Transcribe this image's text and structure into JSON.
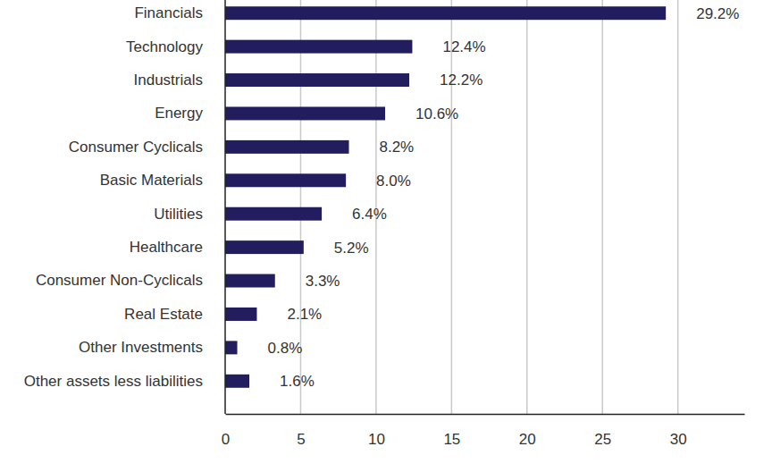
{
  "chart_data": {
    "type": "bar",
    "orientation": "horizontal",
    "categories": [
      "Financials",
      "Technology",
      "Industrials",
      "Energy",
      "Consumer Cyclicals",
      "Basic Materials",
      "Utilities",
      "Healthcare",
      "Consumer Non-Cyclicals",
      "Real Estate",
      "Other Investments",
      "Other assets less liabilities"
    ],
    "values": [
      29.2,
      12.4,
      12.2,
      10.6,
      8.2,
      8.0,
      6.4,
      5.2,
      3.3,
      2.1,
      0.8,
      1.6
    ],
    "value_labels": [
      "29.2%",
      "12.4%",
      "12.2%",
      "10.6%",
      "8.2%",
      "8.0%",
      "6.4%",
      "5.2%",
      "3.3%",
      "2.1%",
      "0.8%",
      "1.6%"
    ],
    "data_labels": true,
    "color": "#211d5e",
    "xlim": [
      0,
      34.4
    ],
    "xticks": [
      0,
      5,
      10,
      15,
      20,
      25,
      30
    ],
    "grid": true
  }
}
